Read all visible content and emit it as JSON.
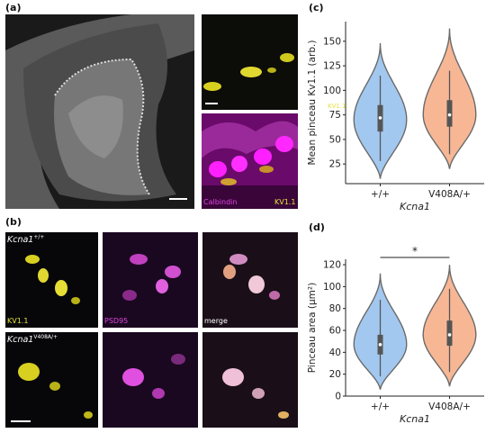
{
  "panels": {
    "a": {
      "label": "(a)",
      "inset_labels": {
        "calbindin": "Calbindin",
        "kv11": "KV1.1"
      }
    },
    "b": {
      "label": "(b)",
      "rows": [
        {
          "gene": "Kcna1",
          "sup": "+/+"
        },
        {
          "gene": "Kcna1",
          "sup": "V408A/+"
        }
      ],
      "channel_labels": {
        "kv11": "KV1.1",
        "psd95": "PSD95",
        "merge": "merge"
      }
    },
    "c": {
      "label": "(c)"
    },
    "d": {
      "label": "(d)",
      "significance": "*"
    }
  },
  "colors": {
    "wt": "#a3c8ef",
    "mut": "#f7b795",
    "outline": "#6a6a6a",
    "yellow": "#e8e23a",
    "magenta": "#e040e0"
  },
  "chart_data": [
    {
      "type": "violin",
      "panel": "c",
      "ylabel": "Mean pinceau Kv1.1 (arb.)",
      "xlabel": "Kcna1",
      "categories": [
        "+/+",
        "V408A/+"
      ],
      "yticks": [
        25,
        50,
        75,
        100,
        125,
        150
      ],
      "ylim": [
        5,
        170
      ],
      "series": [
        {
          "category": "+/+",
          "range": [
            10,
            148
          ],
          "q1": 58,
          "median": 72,
          "q3": 85,
          "whisker": [
            28,
            115
          ],
          "peak": 70
        },
        {
          "category": "V408A/+",
          "range": [
            20,
            163
          ],
          "q1": 63,
          "median": 75,
          "q3": 90,
          "whisker": [
            35,
            120
          ],
          "peak": 75
        }
      ]
    },
    {
      "type": "violin",
      "panel": "d",
      "ylabel": "Pinceau area (μm²)",
      "xlabel": "Kcna1",
      "categories": [
        "+/+",
        "V408A/+"
      ],
      "yticks": [
        0,
        20,
        40,
        60,
        80,
        100,
        120
      ],
      "ylim": [
        0,
        125
      ],
      "series": [
        {
          "category": "+/+",
          "range": [
            6,
            112
          ],
          "q1": 38,
          "median": 47,
          "q3": 56,
          "whisker": [
            18,
            88
          ],
          "peak": 47
        },
        {
          "category": "V408A/+",
          "range": [
            9,
            120
          ],
          "q1": 46,
          "median": 56,
          "q3": 69,
          "whisker": [
            22,
            98
          ],
          "peak": 56
        }
      ]
    }
  ]
}
